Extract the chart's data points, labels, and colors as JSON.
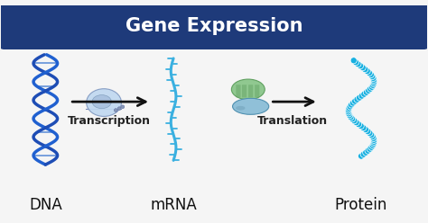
{
  "title": "Gene Expression",
  "title_bg_color": "#1e3a7a",
  "title_text_color": "#ffffff",
  "bg_color": "#f5f5f5",
  "dna_color_left": "#1e4db5",
  "dna_color_right": "#2060d0",
  "dna_rung_color": "#4a80d4",
  "mrna_color": "#3ab0e0",
  "mrna_spike_color": "#3ab0e0",
  "ribosome_top_color": "#90c890",
  "ribosome_top_edge": "#60a060",
  "ribosome_bot_color": "#90c0d8",
  "ribosome_bot_edge": "#5090b0",
  "polymerase_color": "#c0d8f0",
  "polymerase_edge": "#8098c0",
  "protein_color": "#18b0e0",
  "protein_edge": "#0890c0",
  "arrow_color": "#111111",
  "label_color": "#111111",
  "label_dna": "DNA",
  "label_mrna": "mRNA",
  "label_protein": "Protein",
  "label_transcription": "Transcription",
  "label_translation": "Translation",
  "label_fontsize": 12,
  "process_fontsize": 9,
  "title_fontsize": 15
}
